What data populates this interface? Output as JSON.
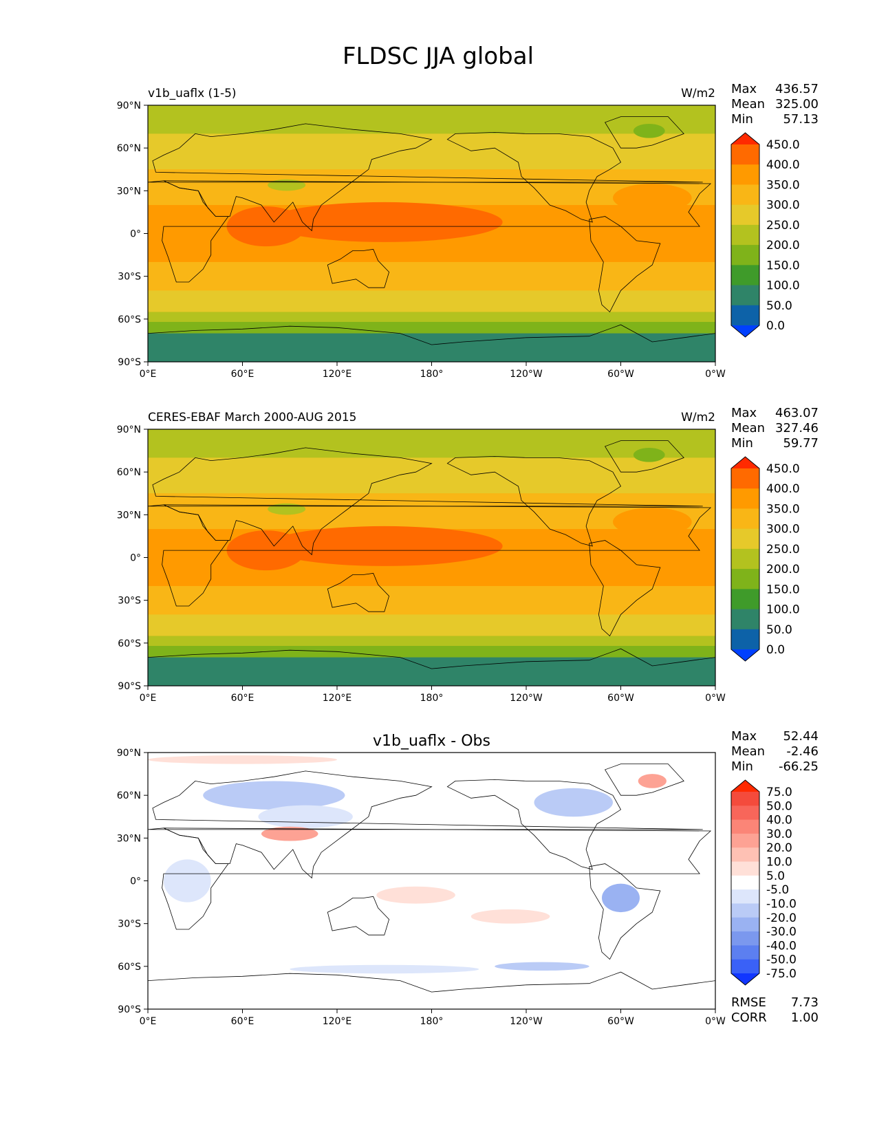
{
  "figure": {
    "title": "FLDSC JJA global"
  },
  "panels": [
    {
      "id": "test",
      "left_title": "v1b_uaflx (1-5)",
      "center_title": "",
      "units": "W/m2",
      "stats": [
        {
          "label": "Max",
          "value": "436.57"
        },
        {
          "label": "Mean",
          "value": "325.00"
        },
        {
          "label": "Min",
          "value": "57.13"
        }
      ],
      "colorbar": {
        "labels": [
          "450.0",
          "400.0",
          "350.0",
          "300.0",
          "250.0",
          "200.0",
          "150.0",
          "100.0",
          "50.0",
          "0.0"
        ],
        "colors": [
          "#ff2a00",
          "#ff6a00",
          "#ff9a00",
          "#f9b616",
          "#e6c92a",
          "#b3c21f",
          "#7fb31a",
          "#3f9b2a",
          "#2f8468",
          "#0d62a8",
          "#0040ff"
        ]
      }
    },
    {
      "id": "ref",
      "left_title": "CERES-EBAF March 2000-AUG 2015",
      "center_title": "",
      "units": "W/m2",
      "stats": [
        {
          "label": "Max",
          "value": "463.07"
        },
        {
          "label": "Mean",
          "value": "327.46"
        },
        {
          "label": "Min",
          "value": "59.77"
        }
      ],
      "colorbar": {
        "labels": [
          "450.0",
          "400.0",
          "350.0",
          "300.0",
          "250.0",
          "200.0",
          "150.0",
          "100.0",
          "50.0",
          "0.0"
        ],
        "colors": [
          "#ff2a00",
          "#ff6a00",
          "#ff9a00",
          "#f9b616",
          "#e6c92a",
          "#b3c21f",
          "#7fb31a",
          "#3f9b2a",
          "#2f8468",
          "#0d62a8",
          "#0040ff"
        ]
      }
    },
    {
      "id": "diff",
      "left_title": "",
      "center_title": "v1b_uaflx - Obs",
      "units": "",
      "stats": [
        {
          "label": "Max",
          "value": "52.44"
        },
        {
          "label": "Mean",
          "value": "-2.46"
        },
        {
          "label": "Min",
          "value": "-66.25"
        }
      ],
      "extra_stats": [
        {
          "label": "RMSE",
          "value": "7.73"
        },
        {
          "label": "CORR",
          "value": "1.00"
        }
      ],
      "colorbar": {
        "labels": [
          "75.0",
          "50.0",
          "40.0",
          "30.0",
          "20.0",
          "10.0",
          "5.0",
          "-5.0",
          "-10.0",
          "-20.0",
          "-30.0",
          "-40.0",
          "-50.0",
          "-75.0"
        ],
        "colors": [
          "#ff2a00",
          "#f44b3c",
          "#f8665a",
          "#fb8577",
          "#fda294",
          "#fec1b4",
          "#ffe0d8",
          "#ffffff",
          "#dde6fb",
          "#bacbf6",
          "#9ab2f2",
          "#7b98ee",
          "#5c7ff0",
          "#3a61f7",
          "#1136ff"
        ]
      }
    }
  ],
  "axes": {
    "lat_ticks": [
      "90°N",
      "60°N",
      "30°N",
      "0°",
      "30°S",
      "60°S",
      "90°S"
    ],
    "lon_ticks": [
      "0°E",
      "60°E",
      "120°E",
      "180°",
      "120°W",
      "60°W",
      "0°W"
    ]
  }
}
